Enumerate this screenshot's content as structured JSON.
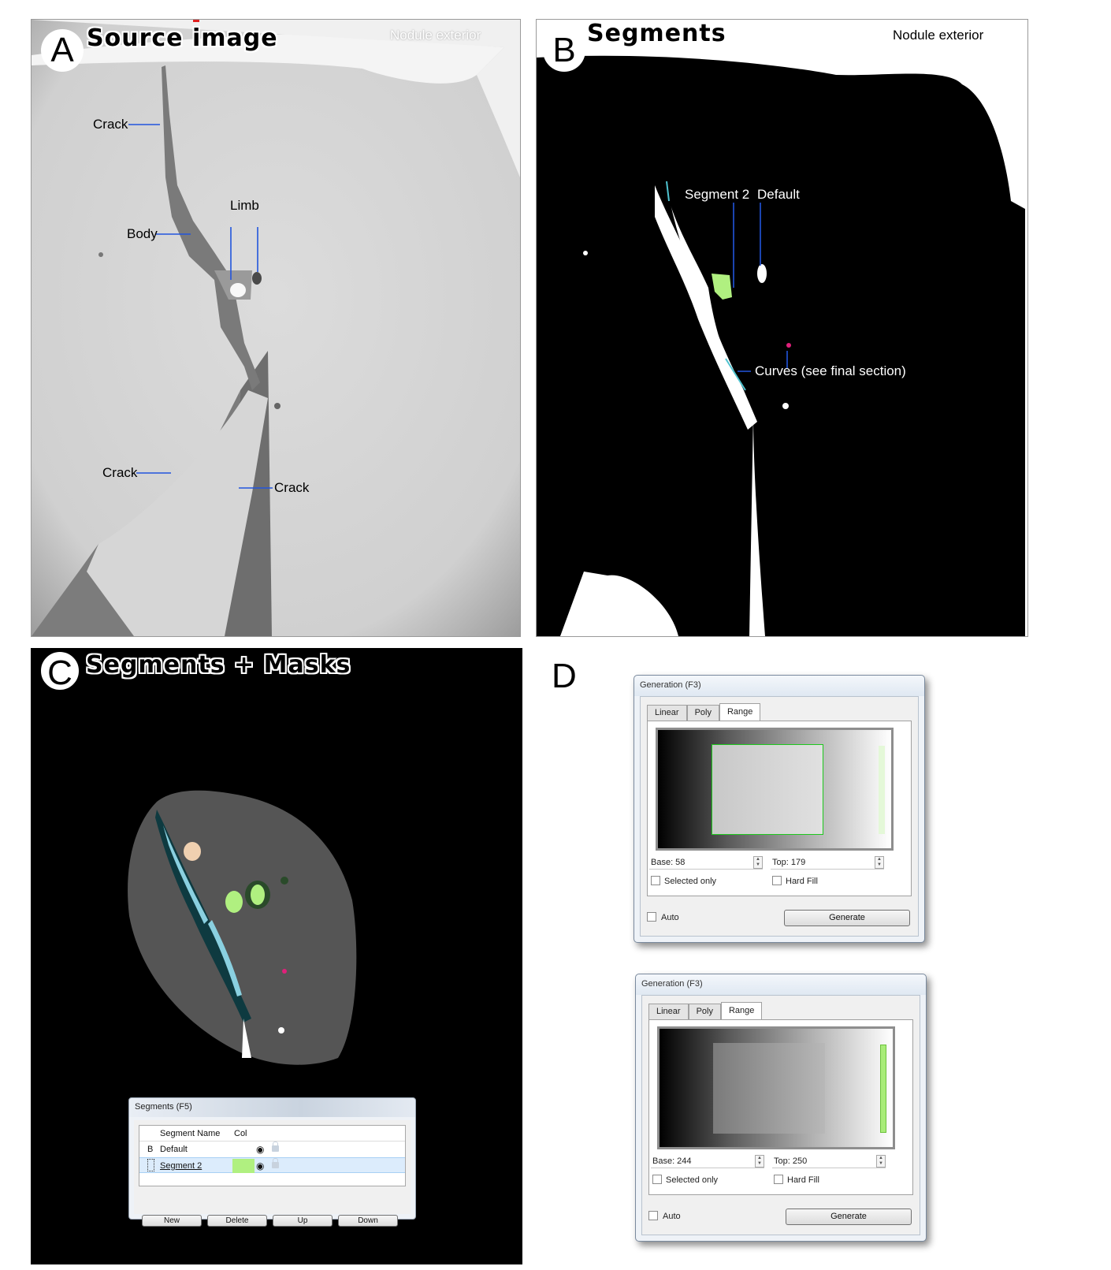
{
  "panel_a": {
    "letter": "A",
    "title": "Source image",
    "corner_label": "Nodule exterior",
    "labels": {
      "crack_top": "Crack",
      "limb": "Limb",
      "body": "Body",
      "crack_bottom_left": "Crack",
      "crack_bottom_right": "Crack"
    }
  },
  "panel_b": {
    "letter": "B",
    "title": "Segments",
    "corner_label": "Nodule exterior",
    "labels": {
      "segment2": "Segment 2",
      "default": "Default",
      "curves": "Curves (see final section)"
    }
  },
  "panel_c": {
    "letter": "C",
    "title": "Segments + Masks",
    "segments_dialog": {
      "title": "Segments (F5)",
      "columns": {
        "name": "Segment Name",
        "color": "Col"
      },
      "rows": [
        {
          "marker": "B",
          "name": "Default",
          "color": ""
        },
        {
          "marker": "",
          "name": "Segment 2",
          "color": "#b0f080"
        }
      ],
      "buttons": {
        "new": "New",
        "delete": "Delete",
        "up": "Up",
        "down": "Down"
      }
    }
  },
  "panel_d": {
    "letter": "D",
    "dialogs": [
      {
        "title": "Generation (F3)",
        "tabs": [
          "Linear",
          "Poly",
          "Range"
        ],
        "active_tab": "Range",
        "base": "Base: 58",
        "top": "Top: 179",
        "selected_only": "Selected only",
        "hard_fill": "Hard Fill",
        "auto": "Auto",
        "generate": "Generate"
      },
      {
        "title": "Generation (F3)",
        "tabs": [
          "Linear",
          "Poly",
          "Range"
        ],
        "active_tab": "Range",
        "base": "Base: 244",
        "top": "Top: 250",
        "selected_only": "Selected only",
        "hard_fill": "Hard Fill",
        "auto": "Auto",
        "generate": "Generate"
      }
    ]
  },
  "colors": {
    "annotation_line": "#2255dd",
    "segment2_green": "#b0f080",
    "mask_gray": "#555555",
    "crack_teal": "#5aa0b0",
    "curve_point": "#e0207a"
  }
}
